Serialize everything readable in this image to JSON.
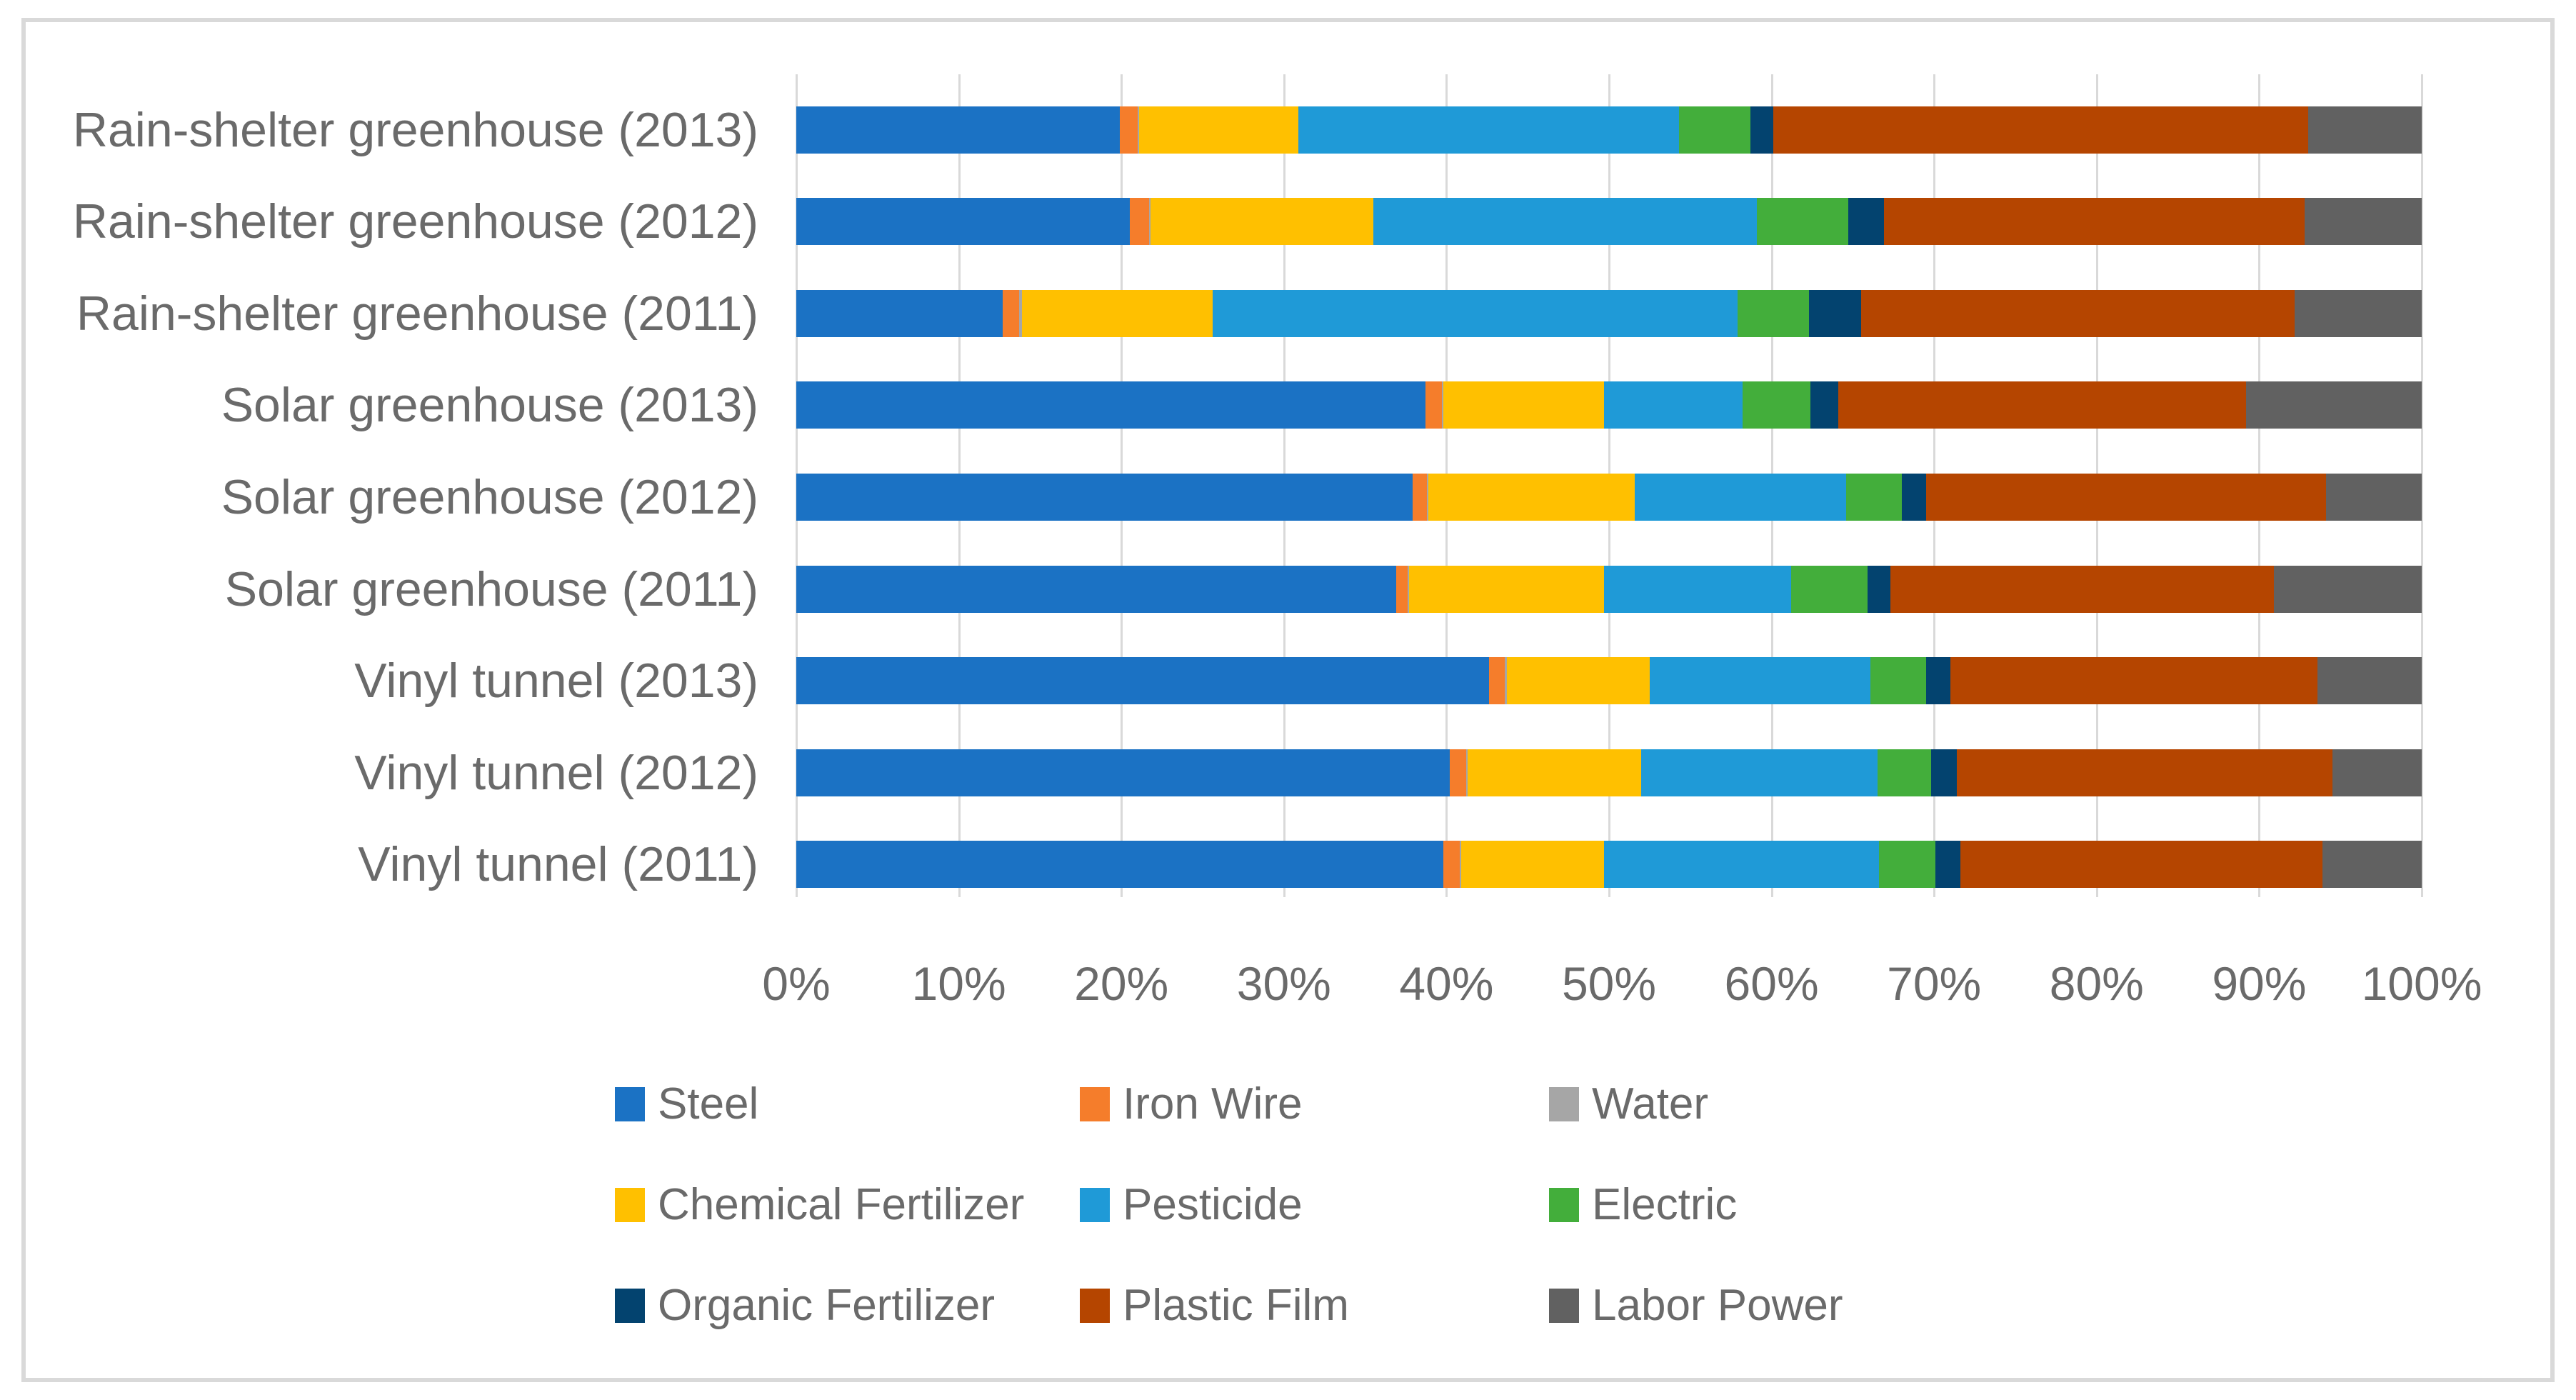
{
  "window": {
    "background": "#FFFFFF",
    "frame_border_color": "#D9D9D9"
  },
  "chart_data": {
    "type": "bar",
    "orientation": "horizontal",
    "stacked_percent": true,
    "title": "",
    "xlabel": "",
    "ylabel": "",
    "xlim": [
      0,
      100
    ],
    "x_ticks": [
      "0%",
      "10%",
      "20%",
      "30%",
      "40%",
      "50%",
      "60%",
      "70%",
      "80%",
      "90%",
      "100%"
    ],
    "grid": "vertical",
    "gridline_color": "#D9D9D9",
    "text_color": "#6A6A6A",
    "legend_position": "bottom",
    "legend_columns": 3,
    "categories": [
      "Rain-shelter greenhouse (2013)",
      "Rain-shelter greenhouse (2012)",
      "Rain-shelter greenhouse (2011)",
      "Solar greenhouse (2013)",
      "Solar greenhouse (2012)",
      "Solar greenhouse (2011)",
      "Vinyl tunnel (2013)",
      "Vinyl tunnel (2012)",
      "Vinyl tunnel (2011)"
    ],
    "series": [
      {
        "name": "Steel",
        "color": "#1B72C4",
        "values": [
          19.9,
          20.5,
          12.7,
          38.7,
          37.9,
          36.9,
          42.6,
          40.2,
          39.8
        ]
      },
      {
        "name": "Iron Wire",
        "color": "#F57D2B",
        "values": [
          1.1,
          1.2,
          1.0,
          1.0,
          0.9,
          0.7,
          1.0,
          1.0,
          1.0
        ]
      },
      {
        "name": "Water",
        "color": "#A6A6A6",
        "values": [
          0.1,
          0.1,
          0.2,
          0.1,
          0.1,
          0.1,
          0.1,
          0.1,
          0.1
        ]
      },
      {
        "name": "Chemical Fertilizer",
        "color": "#FFC000",
        "values": [
          9.8,
          13.7,
          11.7,
          9.9,
          12.7,
          12.0,
          8.8,
          10.7,
          8.8
        ]
      },
      {
        "name": "Pesticide",
        "color": "#1F9AD7",
        "values": [
          23.4,
          23.6,
          32.3,
          8.5,
          13.0,
          11.5,
          13.6,
          14.5,
          16.9
        ]
      },
      {
        "name": "Electric",
        "color": "#43AE3B",
        "values": [
          4.4,
          5.6,
          4.4,
          4.2,
          3.4,
          4.7,
          3.4,
          3.3,
          3.5
        ]
      },
      {
        "name": "Organic Fertilizer",
        "color": "#03436F",
        "values": [
          1.4,
          2.2,
          3.2,
          1.7,
          1.5,
          1.4,
          1.5,
          1.6,
          1.5
        ]
      },
      {
        "name": "Plastic Film",
        "color": "#B54500",
        "values": [
          32.9,
          25.9,
          26.7,
          25.1,
          24.6,
          23.6,
          22.6,
          23.1,
          22.3
        ]
      },
      {
        "name": "Labor Power",
        "color": "#616161",
        "values": [
          7.0,
          7.2,
          7.8,
          10.8,
          5.9,
          9.1,
          6.4,
          5.5,
          6.1
        ]
      }
    ]
  }
}
